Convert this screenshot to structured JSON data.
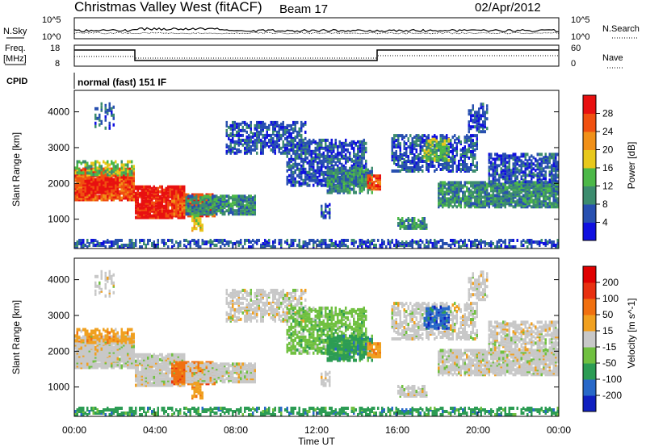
{
  "header": {
    "station": "Christmas Valley West (fitACF)",
    "beam": "Beam 17",
    "date": "02/Apr/2012"
  },
  "noise_panel": {
    "left_label": "N.Sky",
    "right_label": "N.Search",
    "left_ticks": [
      "10^5",
      "10^0"
    ],
    "right_ticks": [
      "10^5",
      "10^0"
    ]
  },
  "freq_panel": {
    "left_label_1": "Freq.",
    "left_label_2": "[MHz]",
    "left_ticks": [
      "18",
      "8"
    ],
    "right_label": "Nave",
    "right_ticks": [
      "60",
      "0"
    ]
  },
  "cpid": {
    "label": "CPID",
    "value": "normal (fast) 151 IF"
  },
  "x_axis": {
    "label": "Time UT",
    "ticks": [
      "00:00",
      "04:00",
      "08:00",
      "12:00",
      "16:00",
      "20:00",
      "00:00"
    ]
  },
  "chart_data": [
    {
      "type": "heatmap",
      "name": "power",
      "ylabel": "Slant Range [km]",
      "yticks": [
        1000,
        2000,
        3000,
        4000
      ],
      "ylim": [
        180,
        4600
      ],
      "xlim_hours": [
        0,
        24
      ],
      "colorbar": {
        "label": "Power [dB]",
        "ticks": [
          "4",
          "8",
          "12",
          "16",
          "20",
          "24",
          "28"
        ],
        "colors": [
          "#1010e0",
          "#2850b0",
          "#3c8c6e",
          "#4cb848",
          "#e8c81c",
          "#f09018",
          "#f05010",
          "#e81010"
        ]
      }
    },
    {
      "type": "heatmap",
      "name": "velocity",
      "ylabel": "Slant Range [km]",
      "yticks": [
        1000,
        2000,
        3000,
        4000
      ],
      "ylim": [
        180,
        4600
      ],
      "xlim_hours": [
        0,
        24
      ],
      "colorbar": {
        "label": "Velocity [m s^-1]",
        "ticks": [
          "200",
          "100",
          "50",
          "15",
          "-15",
          "-50",
          "-100",
          "-200"
        ],
        "colors": [
          "#1020c0",
          "#2868c8",
          "#2c9c54",
          "#70c040",
          "#c8c8c8",
          "#f0a020",
          "#f07010",
          "#e83010",
          "#e00000"
        ]
      }
    }
  ]
}
